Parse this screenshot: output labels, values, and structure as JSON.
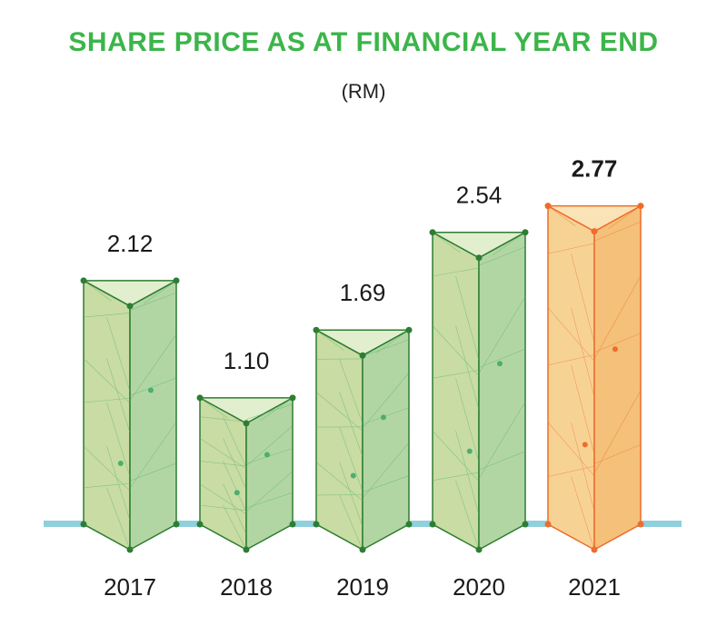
{
  "chart_data": {
    "type": "bar",
    "title": "SHARE PRICE AS AT FINANCIAL YEAR END",
    "subtitle": "(RM)",
    "categories": [
      "2017",
      "2018",
      "2019",
      "2020",
      "2021"
    ],
    "values": [
      2.12,
      1.1,
      1.69,
      2.54,
      2.77
    ],
    "value_labels": [
      "2.12",
      "1.10",
      "1.69",
      "2.54",
      "2.77"
    ],
    "highlight_index": 4,
    "colors": {
      "title": "#3cb54a",
      "bar_fill": "#c9dca3",
      "bar_side": "#b2d6a3",
      "bar_top": "#e2efcf",
      "bar_edge": "#2e7d32",
      "bar_mesh": "#4caf6e",
      "highlight_fill": "#f7d295",
      "highlight_side": "#f4c07a",
      "highlight_top": "#fbe3b8",
      "highlight_edge": "#ef6c2a",
      "baseline": "#8fd0dc"
    }
  }
}
